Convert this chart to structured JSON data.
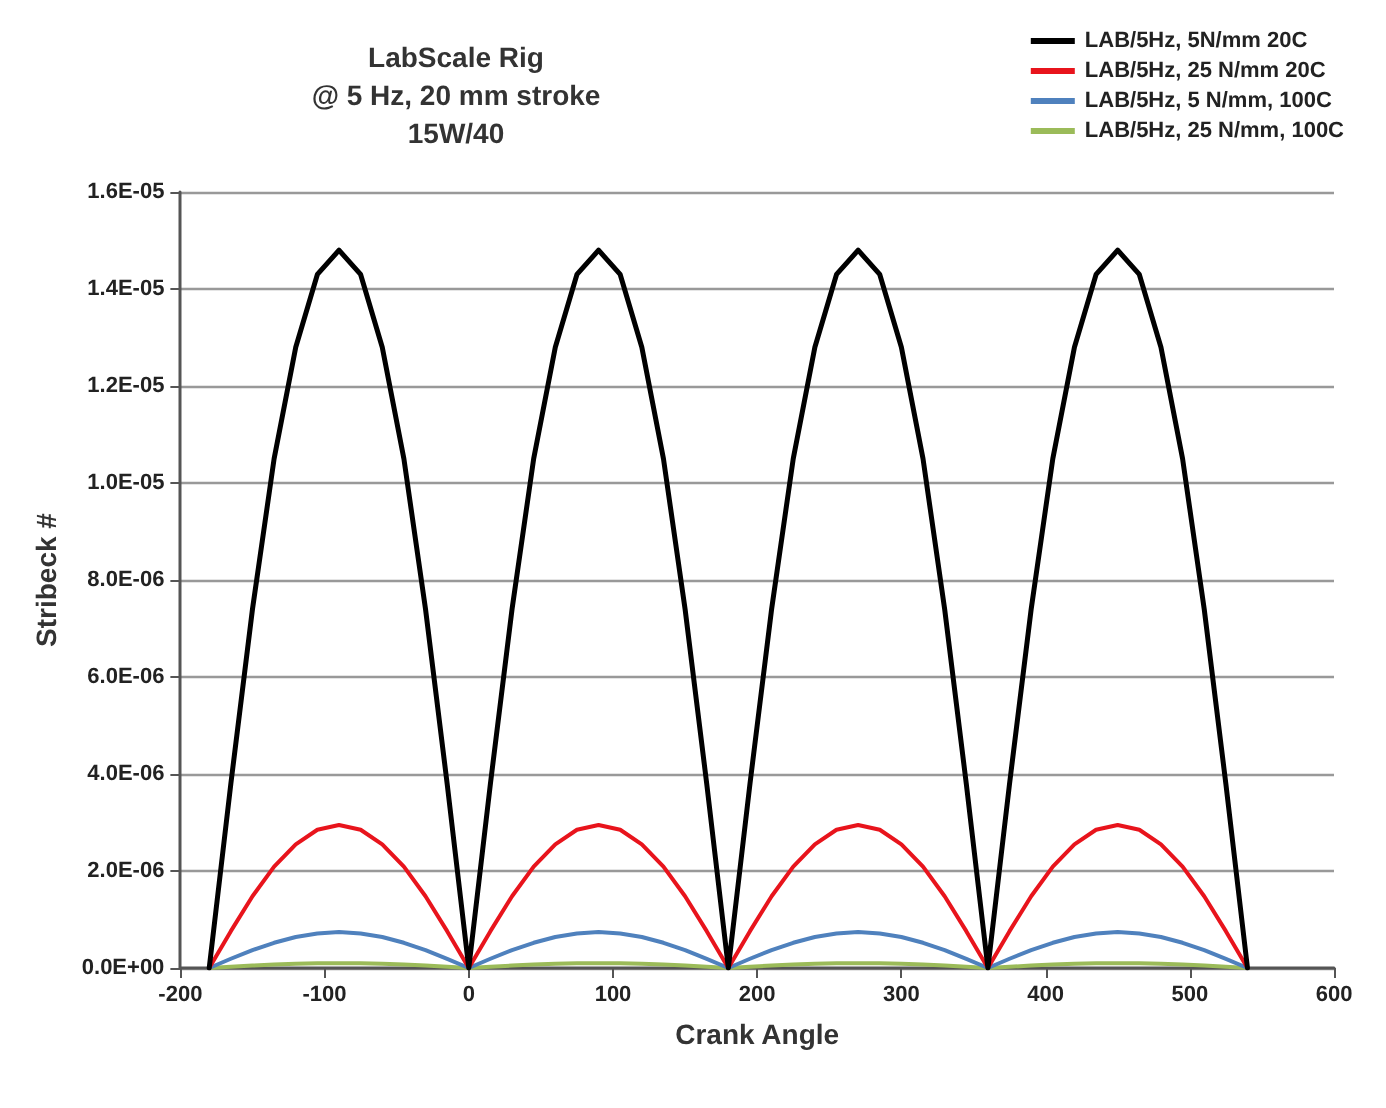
{
  "chart_data": {
    "type": "line",
    "title": "LabScale Rig\n@ 5 Hz, 20 mm stroke\n15W/40",
    "xlabel": "Crank Angle",
    "ylabel": "Stribeck #",
    "x": [
      -180,
      -165,
      -150,
      -135,
      -120,
      -105,
      -90,
      -75,
      -60,
      -45,
      -30,
      -15,
      0,
      15,
      30,
      45,
      60,
      75,
      90,
      105,
      120,
      135,
      150,
      165,
      180,
      195,
      210,
      225,
      240,
      255,
      270,
      285,
      300,
      315,
      330,
      345,
      360,
      375,
      390,
      405,
      420,
      435,
      450,
      465,
      480,
      495,
      510,
      525,
      540
    ],
    "series": [
      {
        "name": "LAB/5Hz, 5N/mm 20C",
        "color": "#000000",
        "values": [
          0,
          3.8e-06,
          7.4e-06,
          1.05e-05,
          1.28e-05,
          1.43e-05,
          1.48e-05,
          1.43e-05,
          1.28e-05,
          1.05e-05,
          7.4e-06,
          3.8e-06,
          0,
          3.8e-06,
          7.4e-06,
          1.05e-05,
          1.28e-05,
          1.43e-05,
          1.48e-05,
          1.43e-05,
          1.28e-05,
          1.05e-05,
          7.4e-06,
          3.8e-06,
          0,
          3.8e-06,
          7.4e-06,
          1.05e-05,
          1.28e-05,
          1.43e-05,
          1.48e-05,
          1.43e-05,
          1.28e-05,
          1.05e-05,
          7.4e-06,
          3.8e-06,
          0,
          3.8e-06,
          7.4e-06,
          1.05e-05,
          1.28e-05,
          1.43e-05,
          1.48e-05,
          1.43e-05,
          1.28e-05,
          1.05e-05,
          7.4e-06,
          3.8e-06,
          0
        ]
      },
      {
        "name": "LAB/5Hz, 25 N/mm 20C",
        "color": "#e8141c",
        "values": [
          0,
          7.6e-07,
          1.48e-06,
          2.09e-06,
          2.55e-06,
          2.85e-06,
          2.95e-06,
          2.85e-06,
          2.55e-06,
          2.09e-06,
          1.48e-06,
          7.6e-07,
          0,
          7.6e-07,
          1.48e-06,
          2.09e-06,
          2.55e-06,
          2.85e-06,
          2.95e-06,
          2.85e-06,
          2.55e-06,
          2.09e-06,
          1.48e-06,
          7.6e-07,
          0,
          7.6e-07,
          1.48e-06,
          2.09e-06,
          2.55e-06,
          2.85e-06,
          2.95e-06,
          2.85e-06,
          2.55e-06,
          2.09e-06,
          1.48e-06,
          7.6e-07,
          0,
          7.6e-07,
          1.48e-06,
          2.09e-06,
          2.55e-06,
          2.85e-06,
          2.95e-06,
          2.85e-06,
          2.55e-06,
          2.09e-06,
          1.48e-06,
          7.6e-07,
          0
        ]
      },
      {
        "name": "LAB/5Hz, 5 N/mm, 100C",
        "color": "#4f81bd",
        "values": [
          0,
          1.9e-07,
          3.7e-07,
          5.2e-07,
          6.4e-07,
          7.1e-07,
          7.4e-07,
          7.1e-07,
          6.4e-07,
          5.2e-07,
          3.7e-07,
          1.9e-07,
          0,
          1.9e-07,
          3.7e-07,
          5.2e-07,
          6.4e-07,
          7.1e-07,
          7.4e-07,
          7.1e-07,
          6.4e-07,
          5.2e-07,
          3.7e-07,
          1.9e-07,
          0,
          1.9e-07,
          3.7e-07,
          5.2e-07,
          6.4e-07,
          7.1e-07,
          7.4e-07,
          7.1e-07,
          6.4e-07,
          5.2e-07,
          3.7e-07,
          1.9e-07,
          0,
          1.9e-07,
          3.7e-07,
          5.2e-07,
          6.4e-07,
          7.1e-07,
          7.4e-07,
          7.1e-07,
          6.4e-07,
          5.2e-07,
          3.7e-07,
          1.9e-07,
          0
        ]
      },
      {
        "name": "LAB/5Hz, 25 N/mm, 100C",
        "color": "#9bbb59",
        "values": [
          0,
          2.6e-08,
          5e-08,
          7.1e-08,
          8.7e-08,
          9.7e-08,
          1e-07,
          9.7e-08,
          8.7e-08,
          7.1e-08,
          5e-08,
          2.6e-08,
          0,
          2.6e-08,
          5e-08,
          7.1e-08,
          8.7e-08,
          9.7e-08,
          1e-07,
          9.7e-08,
          8.7e-08,
          7.1e-08,
          5e-08,
          2.6e-08,
          0,
          2.6e-08,
          5e-08,
          7.1e-08,
          8.7e-08,
          9.7e-08,
          1e-07,
          9.7e-08,
          8.7e-08,
          7.1e-08,
          5e-08,
          2.6e-08,
          0,
          2.6e-08,
          5e-08,
          7.1e-08,
          8.7e-08,
          9.7e-08,
          1e-07,
          9.7e-08,
          8.7e-08,
          7.1e-08,
          5e-08,
          2.6e-08,
          0
        ]
      }
    ],
    "xlim": [
      -200,
      600
    ],
    "xticks": [
      -200,
      -100,
      0,
      100,
      200,
      300,
      400,
      500,
      600
    ],
    "ylim": [
      0,
      1.6e-05
    ],
    "yticks": [
      {
        "value": 0,
        "label": "0.0E+00"
      },
      {
        "value": 2e-06,
        "label": "2.0E-06"
      },
      {
        "value": 4e-06,
        "label": "4.0E-06"
      },
      {
        "value": 6e-06,
        "label": "6.0E-06"
      },
      {
        "value": 8e-06,
        "label": "8.0E-06"
      },
      {
        "value": 1e-05,
        "label": "1.0E-05"
      },
      {
        "value": 1.2e-05,
        "label": "1.2E-05"
      },
      {
        "value": 1.4e-05,
        "label": "1.4E-05"
      },
      {
        "value": 1.6e-05,
        "label": "1.6E-05"
      }
    ],
    "grid": "y",
    "legend": "top right",
    "marker": "none",
    "line_style": "solid"
  }
}
